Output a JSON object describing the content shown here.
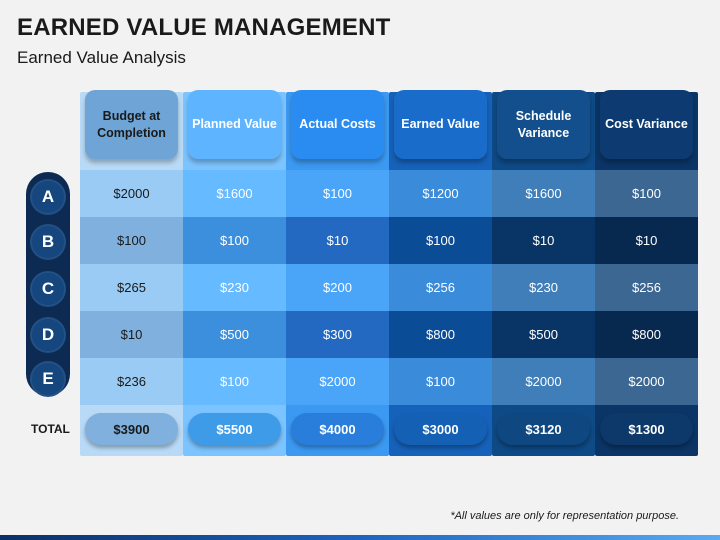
{
  "title": "EARNED VALUE MANAGEMENT",
  "subtitle": "Earned Value Analysis",
  "rows": [
    "A",
    "B",
    "C",
    "D",
    "E"
  ],
  "total_label": "TOTAL",
  "columns": [
    {
      "header": "Budget at Completion",
      "values": [
        "$2000",
        "$100",
        "$265",
        "$10",
        "$236"
      ],
      "total": "$3900",
      "colors": {
        "col": "#b9daf6",
        "head": "#6fa5d6",
        "light": "#9acbf4",
        "dark": "#7fb0de",
        "tot": "#7fb0de"
      }
    },
    {
      "header": "Planned Value",
      "values": [
        "$1600",
        "$100",
        "$230",
        "$500",
        "$100"
      ],
      "total": "$5500",
      "colors": {
        "col": "#7cc4ff",
        "head": "#5fb4ff",
        "light": "#66baff",
        "dark": "#3c8fdd",
        "tot": "#3d9be8"
      }
    },
    {
      "header": "Actual Costs",
      "values": [
        "$100",
        "$10",
        "$200",
        "$300",
        "$2000"
      ],
      "total": "$4000",
      "colors": {
        "col": "#3b99f2",
        "head": "#2a8cf0",
        "light": "#4aa4f7",
        "dark": "#2369c2",
        "tot": "#2a7edb"
      }
    },
    {
      "header": "Earned Value",
      "values": [
        "$1200",
        "$100",
        "$256",
        "$800",
        "$100"
      ],
      "total": "$3000",
      "colors": {
        "col": "#1662ba",
        "head": "#1a6ccb",
        "light": "#3a8bd9",
        "dark": "#0b4c96",
        "tot": "#1460b5"
      }
    },
    {
      "header": "Schedule Variance",
      "values": [
        "$1600",
        "$10",
        "$230",
        "$500",
        "$2000"
      ],
      "total": "$3120",
      "colors": {
        "col": "#0e4a86",
        "head": "#134f8c",
        "light": "#3f7eb8",
        "dark": "#083566",
        "tot": "#0f4780"
      }
    },
    {
      "header": "Cost Variance",
      "values": [
        "$100",
        "$10",
        "$256",
        "$800",
        "$2000"
      ],
      "total": "$1300",
      "colors": {
        "col": "#0b3566",
        "head": "#0d3a70",
        "light": "#3c6792",
        "dark": "#07294f",
        "tot": "#0c386a"
      }
    }
  ],
  "footnote": "*All values are only for representation purpose."
}
